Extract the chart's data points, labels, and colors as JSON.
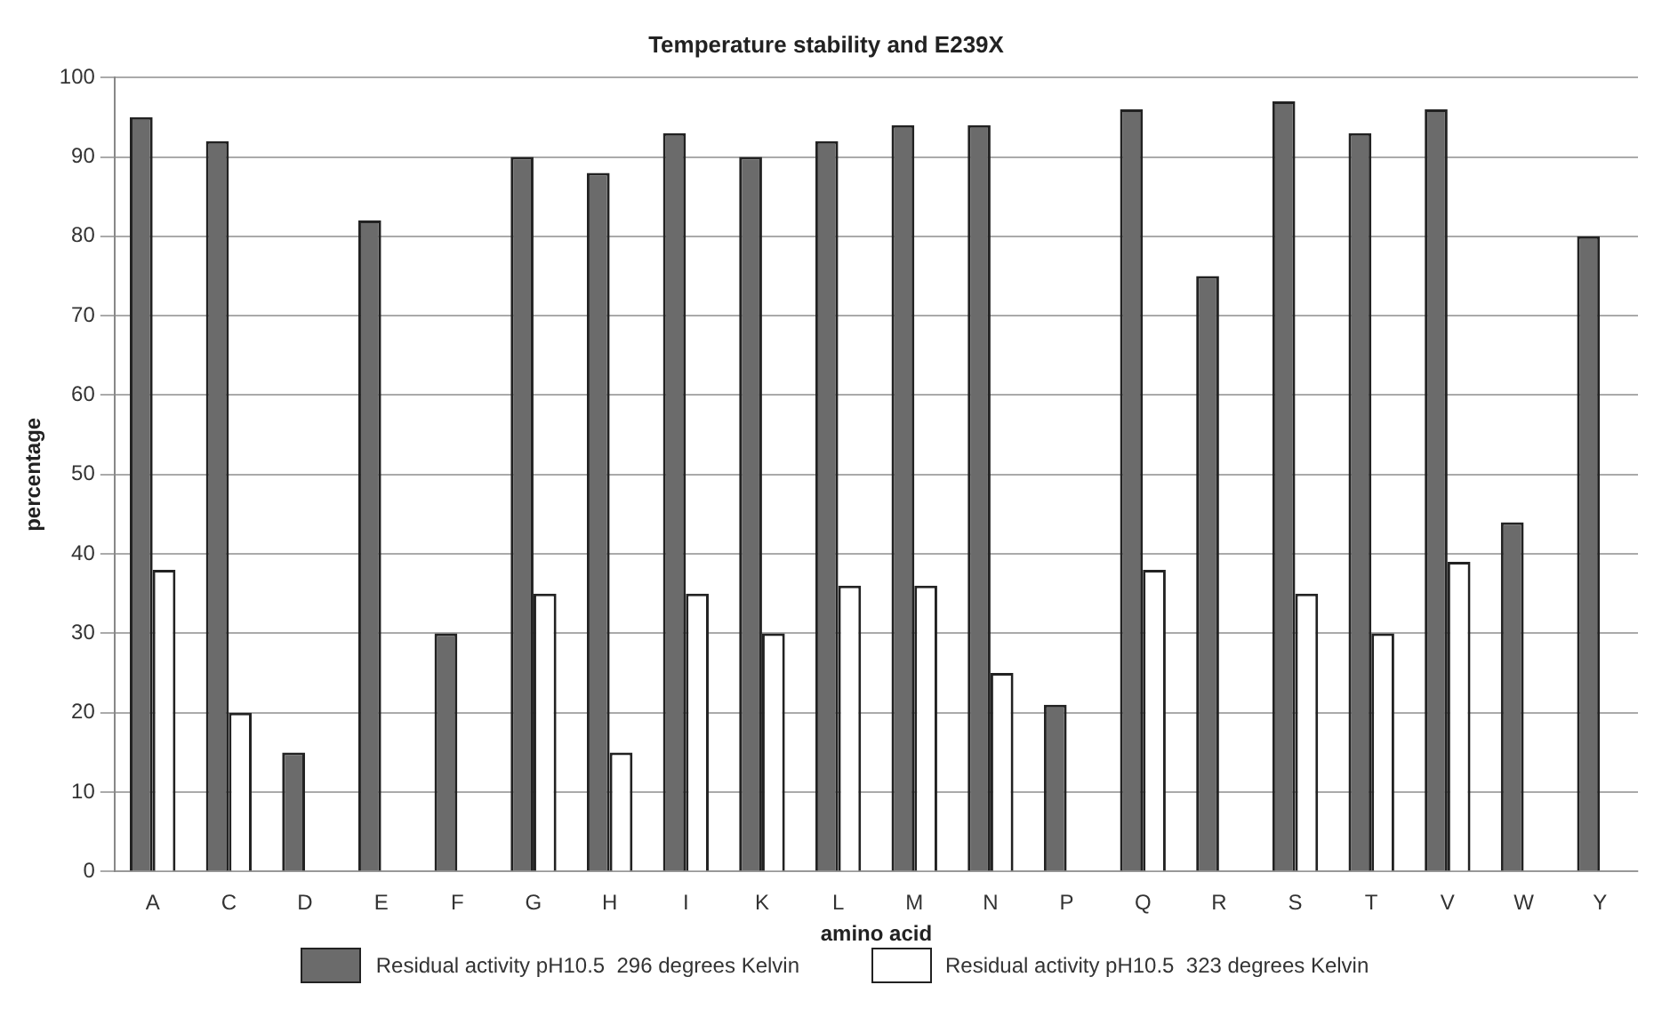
{
  "chart_data": {
    "type": "bar",
    "title": "Temperature stability and E239X",
    "xlabel": "amino acid",
    "ylabel": "percentage",
    "categories": [
      "A",
      "C",
      "D",
      "E",
      "F",
      "G",
      "H",
      "I",
      "K",
      "L",
      "M",
      "N",
      "P",
      "Q",
      "R",
      "S",
      "T",
      "V",
      "W",
      "Y"
    ],
    "series": [
      {
        "name": "Residual activity pH10.5  296 degrees Kelvin",
        "color": "#6b6b6b",
        "values": [
          95,
          92,
          15,
          82,
          30,
          90,
          88,
          93,
          90,
          92,
          94,
          94,
          21,
          96,
          75,
          97,
          93,
          96,
          44,
          80
        ]
      },
      {
        "name": "Residual activity pH10.5  323 degrees Kelvin",
        "color": "#ffffff",
        "values": [
          38,
          20,
          0,
          0,
          0,
          35,
          15,
          35,
          30,
          36,
          36,
          25,
          0,
          38,
          0,
          35,
          30,
          39,
          0,
          0
        ]
      }
    ],
    "ylim": [
      0,
      100
    ],
    "yticks": [
      0,
      10,
      20,
      30,
      40,
      50,
      60,
      70,
      80,
      90,
      100
    ],
    "grid": "y",
    "legend": "bottom"
  }
}
